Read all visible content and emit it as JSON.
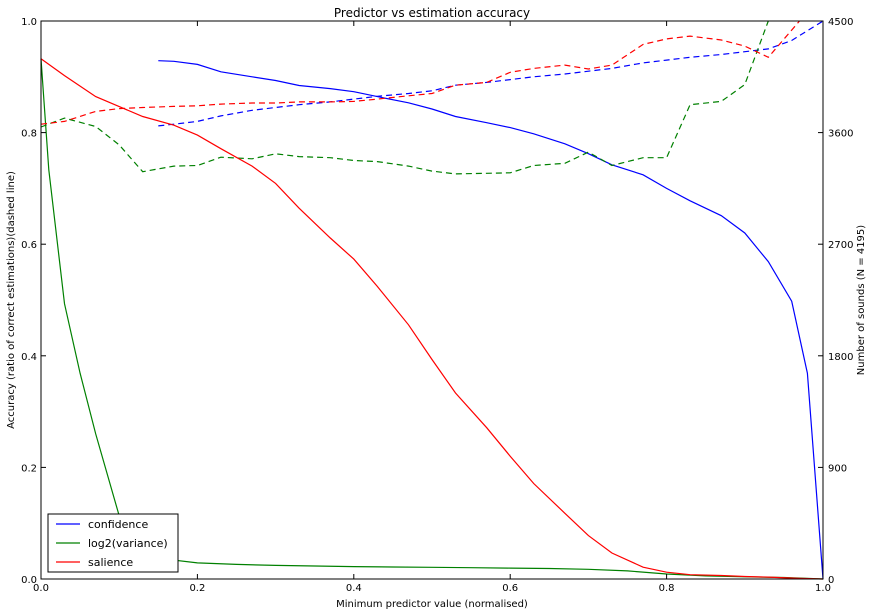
{
  "chart_data": {
    "type": "line",
    "title": "Predictor vs estimation accuracy",
    "xlabel": "Minimum predictor value (normalised)",
    "ylabel": "Accuracy (ratio of correct estimations)(dashed line)",
    "y2label": "Number of sounds (N = 4195)",
    "xlim": [
      0,
      1
    ],
    "ylim": [
      0,
      1
    ],
    "y2lim": [
      0,
      4500
    ],
    "xticks": [
      "0.0",
      "0.2",
      "0.4",
      "0.6",
      "0.8",
      "1.0"
    ],
    "yticks": [
      "0.0",
      "0.2",
      "0.4",
      "0.6",
      "0.8",
      "1.0"
    ],
    "y2ticks": [
      "0",
      "900",
      "1800",
      "2700",
      "3600",
      "4500"
    ],
    "legend_position": "lower-left",
    "grid": false,
    "series": [
      {
        "name": "confidence",
        "color": "#0000ff",
        "count": {
          "x": [
            0.15,
            0.17,
            0.2,
            0.23,
            0.27,
            0.3,
            0.33,
            0.37,
            0.4,
            0.43,
            0.47,
            0.5,
            0.53,
            0.57,
            0.6,
            0.63,
            0.67,
            0.7,
            0.73,
            0.77,
            0.8,
            0.83,
            0.87,
            0.9,
            0.93,
            0.96,
            0.98,
            1.0
          ],
          "y": [
            4180,
            4175,
            4150,
            4090,
            4050,
            4020,
            3980,
            3955,
            3930,
            3890,
            3840,
            3790,
            3730,
            3680,
            3640,
            3590,
            3510,
            3430,
            3340,
            3260,
            3150,
            3050,
            2930,
            2790,
            2560,
            2240,
            1660,
            0
          ]
        },
        "accuracy": {
          "x": [
            0.15,
            0.17,
            0.2,
            0.23,
            0.27,
            0.3,
            0.33,
            0.37,
            0.4,
            0.43,
            0.47,
            0.5,
            0.53,
            0.57,
            0.6,
            0.63,
            0.67,
            0.7,
            0.73,
            0.77,
            0.8,
            0.83,
            0.87,
            0.9,
            0.93,
            0.96,
            1.0
          ],
          "y": [
            0.812,
            0.815,
            0.82,
            0.83,
            0.84,
            0.845,
            0.85,
            0.855,
            0.86,
            0.865,
            0.87,
            0.875,
            0.885,
            0.89,
            0.895,
            0.9,
            0.905,
            0.91,
            0.915,
            0.925,
            0.93,
            0.935,
            0.94,
            0.945,
            0.95,
            0.965,
            1.0
          ]
        }
      },
      {
        "name": "log2(variance)",
        "color": "#008000",
        "count": {
          "x": [
            0.0,
            0.01,
            0.03,
            0.05,
            0.07,
            0.1,
            0.13,
            0.16,
            0.2,
            0.25,
            0.3,
            0.35,
            0.4,
            0.45,
            0.5,
            0.55,
            0.6,
            0.65,
            0.7,
            0.75,
            0.8,
            0.85,
            0.9,
            0.95,
            1.0
          ],
          "y": [
            4195,
            3300,
            2220,
            1660,
            1170,
            510,
            215,
            160,
            130,
            118,
            110,
            105,
            100,
            97,
            94,
            91,
            88,
            85,
            78,
            65,
            40,
            25,
            18,
            12,
            0
          ]
        },
        "accuracy": {
          "x": [
            0.0,
            0.03,
            0.07,
            0.1,
            0.13,
            0.17,
            0.2,
            0.23,
            0.27,
            0.3,
            0.33,
            0.37,
            0.4,
            0.43,
            0.47,
            0.5,
            0.53,
            0.57,
            0.6,
            0.63,
            0.67,
            0.7,
            0.73,
            0.77,
            0.8,
            0.83,
            0.87,
            0.9,
            0.93
          ],
          "y": [
            0.81,
            0.826,
            0.811,
            0.778,
            0.73,
            0.74,
            0.741,
            0.756,
            0.753,
            0.762,
            0.757,
            0.755,
            0.75,
            0.748,
            0.74,
            0.731,
            0.726,
            0.727,
            0.728,
            0.741,
            0.745,
            0.765,
            0.741,
            0.755,
            0.755,
            0.85,
            0.856,
            0.886,
            1.0
          ]
        }
      },
      {
        "name": "salience",
        "color": "#ff0000",
        "count": {
          "x": [
            0.0,
            0.03,
            0.07,
            0.1,
            0.13,
            0.17,
            0.2,
            0.23,
            0.27,
            0.3,
            0.33,
            0.37,
            0.4,
            0.43,
            0.47,
            0.5,
            0.53,
            0.57,
            0.6,
            0.63,
            0.67,
            0.7,
            0.73,
            0.77,
            0.8,
            0.83,
            0.87,
            0.9,
            0.93,
            0.97,
            1.0
          ],
          "y": [
            4195,
            4060,
            3890,
            3810,
            3730,
            3660,
            3580,
            3470,
            3330,
            3190,
            2990,
            2750,
            2580,
            2360,
            2050,
            1770,
            1500,
            1220,
            990,
            770,
            530,
            350,
            210,
            95,
            55,
            35,
            28,
            20,
            15,
            5,
            0
          ]
        },
        "accuracy": {
          "x": [
            0.0,
            0.03,
            0.07,
            0.1,
            0.13,
            0.17,
            0.2,
            0.23,
            0.27,
            0.3,
            0.33,
            0.37,
            0.4,
            0.43,
            0.47,
            0.5,
            0.53,
            0.57,
            0.6,
            0.63,
            0.67,
            0.7,
            0.73,
            0.77,
            0.8,
            0.83,
            0.87,
            0.9,
            0.93,
            0.97
          ],
          "y": [
            0.815,
            0.82,
            0.838,
            0.843,
            0.845,
            0.847,
            0.848,
            0.851,
            0.853,
            0.853,
            0.855,
            0.855,
            0.856,
            0.86,
            0.866,
            0.87,
            0.885,
            0.89,
            0.908,
            0.915,
            0.921,
            0.914,
            0.921,
            0.958,
            0.968,
            0.973,
            0.966,
            0.955,
            0.935,
            1.0
          ]
        }
      }
    ]
  }
}
